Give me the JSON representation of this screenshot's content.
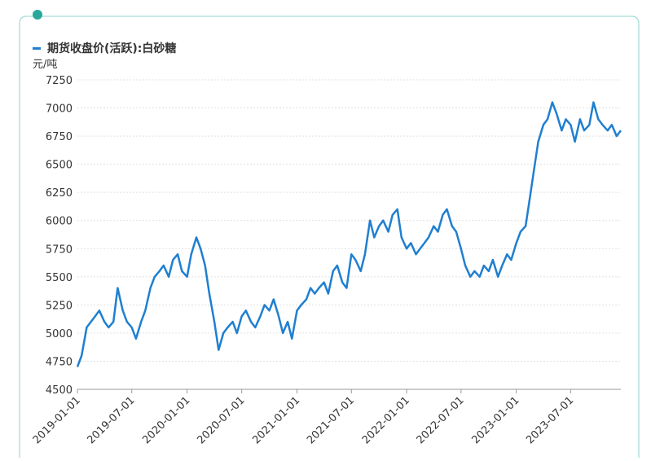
{
  "chart_data": {
    "type": "line",
    "y_label": "元/吨",
    "x": [
      "2019-01-01",
      "2019-01-15",
      "2019-02-01",
      "2019-02-15",
      "2019-03-01",
      "2019-03-15",
      "2019-04-01",
      "2019-04-15",
      "2019-05-01",
      "2019-05-15",
      "2019-06-01",
      "2019-06-15",
      "2019-07-01",
      "2019-07-15",
      "2019-08-01",
      "2019-08-15",
      "2019-09-01",
      "2019-09-15",
      "2019-10-01",
      "2019-10-15",
      "2019-11-01",
      "2019-11-15",
      "2019-12-01",
      "2019-12-15",
      "2020-01-01",
      "2020-01-15",
      "2020-02-01",
      "2020-02-15",
      "2020-03-01",
      "2020-03-15",
      "2020-04-01",
      "2020-04-15",
      "2020-05-01",
      "2020-05-15",
      "2020-06-01",
      "2020-06-15",
      "2020-07-01",
      "2020-07-15",
      "2020-08-01",
      "2020-08-15",
      "2020-09-01",
      "2020-09-15",
      "2020-10-01",
      "2020-10-15",
      "2020-11-01",
      "2020-11-15",
      "2020-12-01",
      "2020-12-15",
      "2021-01-01",
      "2021-01-15",
      "2021-02-01",
      "2021-02-15",
      "2021-03-01",
      "2021-03-15",
      "2021-04-01",
      "2021-04-15",
      "2021-05-01",
      "2021-05-15",
      "2021-06-01",
      "2021-06-15",
      "2021-07-01",
      "2021-07-15",
      "2021-08-01",
      "2021-08-15",
      "2021-09-01",
      "2021-09-15",
      "2021-10-01",
      "2021-10-15",
      "2021-11-01",
      "2021-11-15",
      "2021-12-01",
      "2021-12-15",
      "2022-01-01",
      "2022-01-15",
      "2022-02-01",
      "2022-02-15",
      "2022-03-01",
      "2022-03-15",
      "2022-04-01",
      "2022-04-15",
      "2022-05-01",
      "2022-05-15",
      "2022-06-01",
      "2022-06-15",
      "2022-07-01",
      "2022-07-15",
      "2022-08-01",
      "2022-08-15",
      "2022-09-01",
      "2022-09-15",
      "2022-10-01",
      "2022-10-15",
      "2022-11-01",
      "2022-11-15",
      "2022-12-01",
      "2022-12-15",
      "2023-01-01",
      "2023-01-15",
      "2023-02-01",
      "2023-02-15",
      "2023-03-01",
      "2023-03-15",
      "2023-04-01",
      "2023-04-15",
      "2023-05-01",
      "2023-05-15",
      "2023-06-01",
      "2023-06-15",
      "2023-07-01",
      "2023-07-15",
      "2023-08-01",
      "2023-08-15",
      "2023-09-01",
      "2023-09-15",
      "2023-10-01",
      "2023-10-15",
      "2023-11-01",
      "2023-11-15",
      "2023-12-01",
      "2023-12-15"
    ],
    "series": [
      {
        "name": "期货收盘价(活跃):白砂糖",
        "color": "#1f7fd0",
        "values": [
          4700,
          4800,
          5050,
          5100,
          5150,
          5200,
          5100,
          5050,
          5100,
          5400,
          5200,
          5100,
          5050,
          4950,
          5100,
          5200,
          5400,
          5500,
          5550,
          5600,
          5500,
          5650,
          5700,
          5550,
          5500,
          5700,
          5850,
          5750,
          5600,
          5350,
          5100,
          4850,
          5000,
          5050,
          5100,
          5000,
          5150,
          5200,
          5100,
          5050,
          5150,
          5250,
          5200,
          5300,
          5150,
          5000,
          5100,
          4950,
          5200,
          5250,
          5300,
          5400,
          5350,
          5400,
          5450,
          5350,
          5550,
          5600,
          5450,
          5400,
          5700,
          5650,
          5550,
          5700,
          6000,
          5850,
          5950,
          6000,
          5900,
          6050,
          6100,
          5850,
          5750,
          5800,
          5700,
          5750,
          5800,
          5850,
          5950,
          5900,
          6050,
          6100,
          5950,
          5900,
          5750,
          5600,
          5500,
          5550,
          5500,
          5600,
          5550,
          5650,
          5500,
          5600,
          5700,
          5650,
          5800,
          5900,
          5950,
          6200,
          6450,
          6700,
          6850,
          6900,
          7050,
          6950,
          6800,
          6900,
          6850,
          6700,
          6900,
          6800,
          6850,
          7050,
          6900,
          6850,
          6800,
          6850,
          6750,
          6800
        ]
      }
    ],
    "xlim": [
      "2019-01-01",
      "2023-12-15"
    ],
    "xticks": [
      "2019-01-01",
      "2019-07-01",
      "2020-01-01",
      "2020-07-01",
      "2021-01-01",
      "2021-07-01",
      "2022-01-01",
      "2022-07-01",
      "2023-01-01",
      "2023-07-01"
    ],
    "ylim": [
      4500,
      7250
    ],
    "yticks": [
      4500,
      4750,
      5000,
      5250,
      5500,
      5750,
      6000,
      6250,
      6500,
      6750,
      7000,
      7250
    ],
    "grid": true
  }
}
